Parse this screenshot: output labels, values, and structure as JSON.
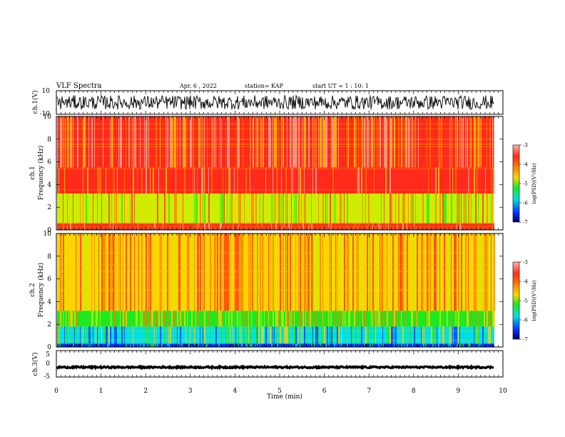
{
  "header": {
    "title": "VLF Spectra",
    "date": "Apr. 6 , 2022",
    "station": "station= KAP",
    "start": "start  UT =  1 : 10: 1"
  },
  "colors": {
    "red": "#ff2a1a",
    "pink": "#ffb3aa",
    "orange": "#ff7a00",
    "yellow": "#ffd400",
    "yellow_green": "#c8f000",
    "green": "#1fe81f",
    "cyan": "#00e0e0",
    "blue": "#0030ff",
    "navy": "#000070"
  },
  "chart_data": [
    {
      "type": "line",
      "name": "ch1-waveform",
      "ylabel": "ch.1(V)",
      "ylim": [
        -10,
        10
      ],
      "yticks": [
        "10",
        "-10"
      ],
      "x_range_min": [
        0,
        9.8
      ],
      "approx_center_V": 0,
      "approx_amplitude_V": 6
    },
    {
      "type": "heatmap",
      "name": "ch1-spectrogram",
      "ylabel_channel": "ch.1",
      "ylabel": "Frequency (kHz)",
      "ylim": [
        0,
        10
      ],
      "yticks": [
        "0",
        "2",
        "4",
        "6",
        "8",
        "10"
      ],
      "x_range_min": [
        0,
        9.8
      ],
      "bands": [
        {
          "f_min": 0.0,
          "f_max": 0.6,
          "level": "mixed red/pink"
        },
        {
          "f_min": 0.6,
          "f_max": 3.2,
          "level": "yellow-green/green"
        },
        {
          "f_min": 3.2,
          "f_max": 5.5,
          "level": "red"
        },
        {
          "f_min": 5.5,
          "f_max": 10.0,
          "level": "red/pink speckle"
        }
      ],
      "colorbar": {
        "label": "log(PSD)(V²/Hz)",
        "ticks": [
          "-3",
          "-4",
          "-5",
          "-6",
          "-7"
        ],
        "range": [
          -7,
          -3
        ]
      }
    },
    {
      "type": "heatmap",
      "name": "ch2-spectrogram",
      "ylabel_channel": "ch.2",
      "ylabel": "Frequency (kHz)",
      "ylim": [
        0,
        10
      ],
      "yticks": [
        "0",
        "2",
        "4",
        "6",
        "8",
        "10"
      ],
      "x_range_min": [
        0,
        9.8
      ],
      "bands": [
        {
          "f_min": 0.0,
          "f_max": 0.3,
          "level": "blue/cyan"
        },
        {
          "f_min": 0.3,
          "f_max": 1.8,
          "level": "cyan/green"
        },
        {
          "f_min": 1.8,
          "f_max": 3.2,
          "level": "green/yellow"
        },
        {
          "f_min": 3.2,
          "f_max": 10.0,
          "level": "yellow/orange/red striped"
        }
      ],
      "colorbar": {
        "label": "log(PSD)(V²/Hz)",
        "ticks": [
          "-3",
          "-4",
          "-5",
          "-6",
          "-7"
        ],
        "range": [
          -7,
          -3
        ]
      }
    },
    {
      "type": "line",
      "name": "ch3-waveform",
      "ylabel": "ch.3(V)",
      "ylim": [
        -5,
        5
      ],
      "yticks": [
        "5",
        "0",
        "-5"
      ],
      "x_range_min": [
        0,
        9.8
      ],
      "approx_center_V": -1.3,
      "approx_amplitude_V": 0.3
    }
  ],
  "xaxis": {
    "label": "Time (min)",
    "xlim": [
      0,
      10
    ],
    "ticks": [
      "0",
      "1",
      "2",
      "3",
      "4",
      "5",
      "6",
      "7",
      "8",
      "9",
      "10"
    ]
  }
}
